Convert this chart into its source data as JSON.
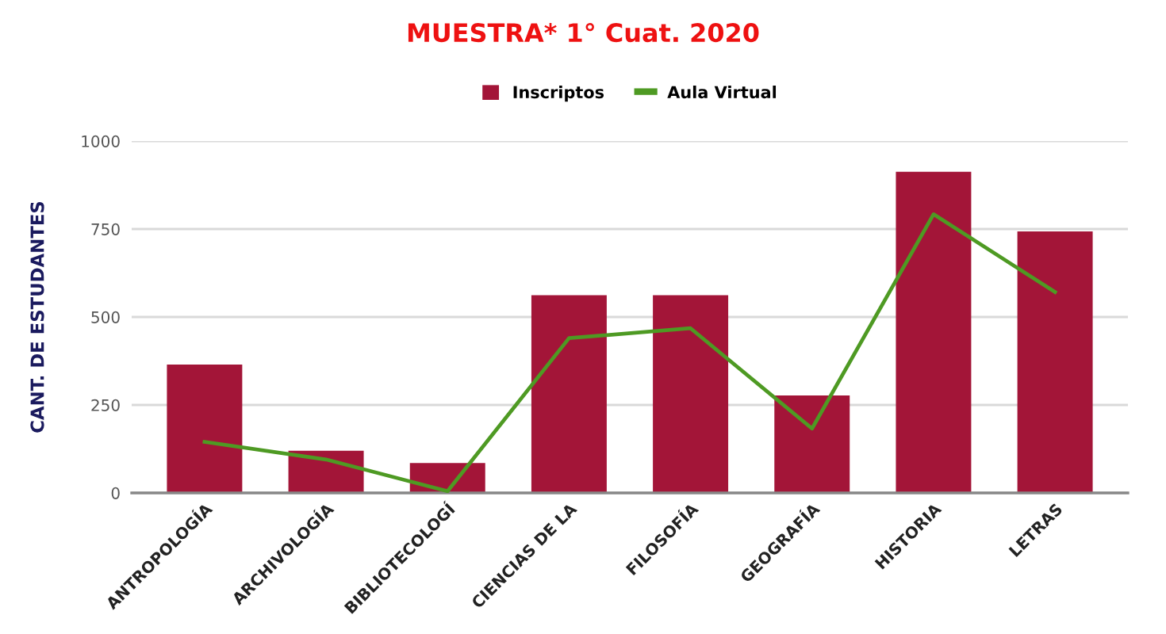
{
  "chart_data": {
    "type": "bar",
    "title": "MUESTRA* 1° Cuat. 2020",
    "ylabel": "CANT. DE ESTUDANTES",
    "categories": [
      "ANTROPOLOGÍA",
      "ARCHIVOLOGÍA",
      "BIBLIOTECOLOGÍ",
      "CIENCIAS DE LA",
      "FILOSOFÍA",
      "GEOGRAFÍA",
      "HISTORIA",
      "LETRAS"
    ],
    "series": [
      {
        "name": "Inscriptos",
        "color": "#a31538",
        "values": [
          365,
          120,
          85,
          562,
          562,
          277,
          913,
          743
        ]
      },
      {
        "name": "Aula Virtual",
        "type": "line",
        "color": "#4e9a23",
        "values": [
          145,
          95,
          5,
          440,
          468,
          183,
          792,
          571
        ]
      }
    ],
    "ylim": [
      0,
      1000
    ],
    "yticks": [
      0,
      250,
      500,
      750,
      1000
    ],
    "grid": "y",
    "legend": "top"
  }
}
